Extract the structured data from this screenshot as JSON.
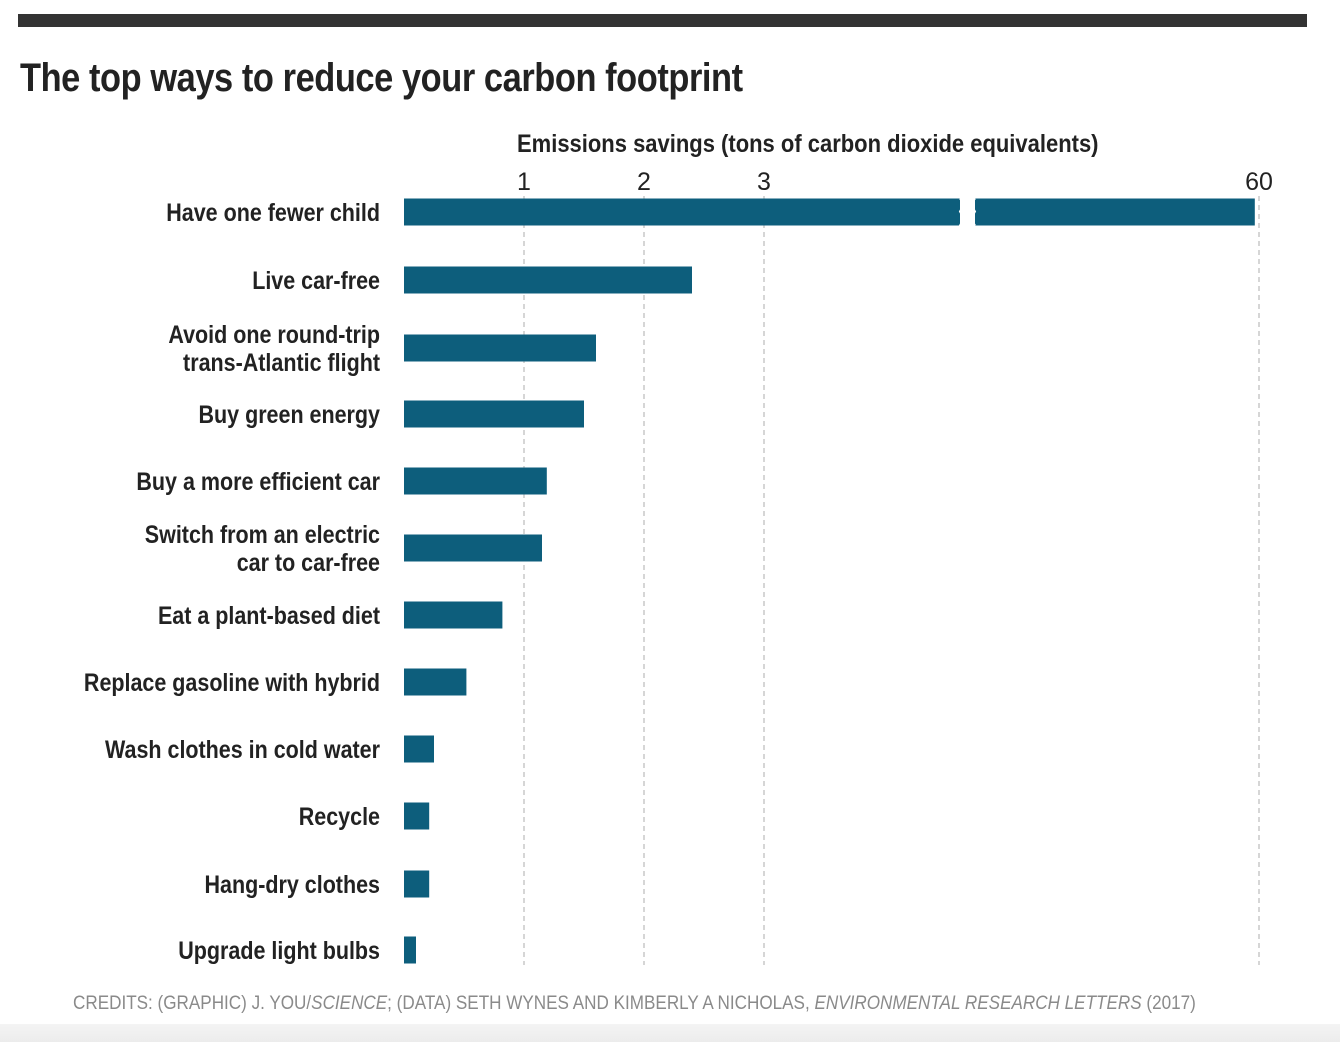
{
  "chart_data": {
    "type": "bar",
    "orientation": "horizontal",
    "title": "The top ways to reduce your carbon footprint",
    "xlabel": "Emissions savings (tons of carbon dioxide equivalents)",
    "ylabel": "",
    "xticks": [
      1,
      2,
      3,
      60
    ],
    "axis_break": "between 3 and 60",
    "xlim": [
      0,
      60
    ],
    "grid": "vertical dashed at ticks",
    "bar_color": "#0d5e7c",
    "categories": [
      [
        "Have one fewer child"
      ],
      [
        "Live car-free"
      ],
      [
        "Avoid one round-trip",
        "trans-Atlantic flight"
      ],
      [
        "Buy green energy"
      ],
      [
        "Buy a more efficient car"
      ],
      [
        "Switch from an electric",
        "car to car-free"
      ],
      [
        "Eat a plant-based diet"
      ],
      [
        "Replace gasoline with hybrid"
      ],
      [
        "Wash clothes in cold water"
      ],
      [
        "Recycle"
      ],
      [
        "Hang-dry clothes"
      ],
      [
        "Upgrade light bulbs"
      ]
    ],
    "values": [
      58.6,
      2.4,
      1.6,
      1.5,
      1.19,
      1.15,
      0.82,
      0.52,
      0.25,
      0.21,
      0.21,
      0.1
    ]
  },
  "credits": {
    "prefix": "CREDITS: (GRAPHIC) J. YOU/",
    "science": "SCIENCE",
    "middle": "; (DATA) SETH WYNES AND KIMBERLY A NICHOLAS, ",
    "journal": "ENVIRONMENTAL RESEARCH LETTERS",
    "year": " (2017)"
  }
}
